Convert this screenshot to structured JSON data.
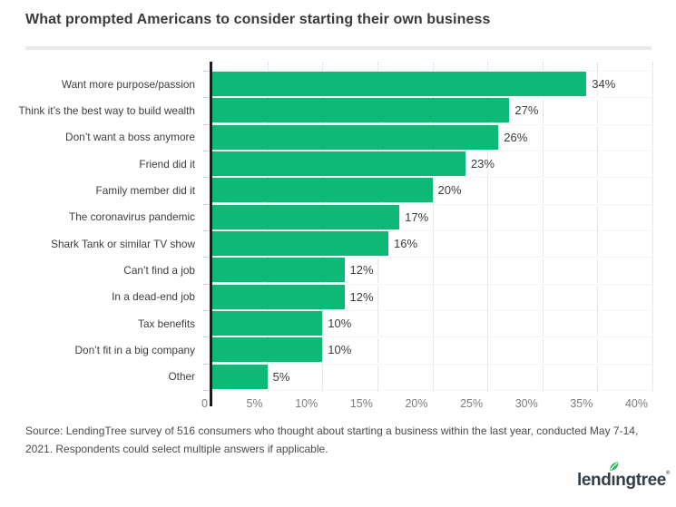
{
  "page": {
    "source_text": "Source: LendingTree survey of 516 consumers who thought about starting a business within the last year, conducted May 7-14, 2021. Respondents could select multiple answers if applicable.",
    "logo": {
      "text": "lendingtree",
      "mark": "®",
      "leaf_icon": "leaf-icon",
      "text_color": "#333f48",
      "leaf_color": "#2ab757"
    }
  },
  "chart_data": {
    "type": "bar",
    "orientation": "horizontal",
    "title": "What prompted Americans to consider starting their own business",
    "categories": [
      "Want more purpose/passion",
      "Think it’s the best way to build wealth",
      "Don’t want a boss anymore",
      "Friend did it",
      "Family member did it",
      "The coronavirus pandemic",
      "Shark Tank or similar TV show",
      "Can’t find a job",
      "In a dead-end job",
      "Tax benefits",
      "Don’t fit in a big company",
      "Other"
    ],
    "values": [
      34,
      27,
      26,
      23,
      20,
      17,
      16,
      12,
      12,
      10,
      10,
      5
    ],
    "value_labels": [
      "34%",
      "27%",
      "26%",
      "23%",
      "20%",
      "17%",
      "16%",
      "12%",
      "12%",
      "10%",
      "10%",
      "5%"
    ],
    "xlim": [
      0,
      40
    ],
    "x_ticks": [
      {
        "label": "0",
        "value": 0
      },
      {
        "label": "5%",
        "value": 5
      },
      {
        "label": "10%",
        "value": 10
      },
      {
        "label": "15%",
        "value": 15
      },
      {
        "label": "20%",
        "value": 20
      },
      {
        "label": "25%",
        "value": 25
      },
      {
        "label": "30%",
        "value": 30
      },
      {
        "label": "35%",
        "value": 35
      },
      {
        "label": "40%",
        "value": 40
      }
    ],
    "grid": "vertical dotted gridlines every 5%",
    "legend": "none",
    "bar_color": "#10b877",
    "axis_line_color": "#1c1c1c",
    "tick_label_color": "#7c7c7c",
    "label_color": "#3d3d3d"
  }
}
